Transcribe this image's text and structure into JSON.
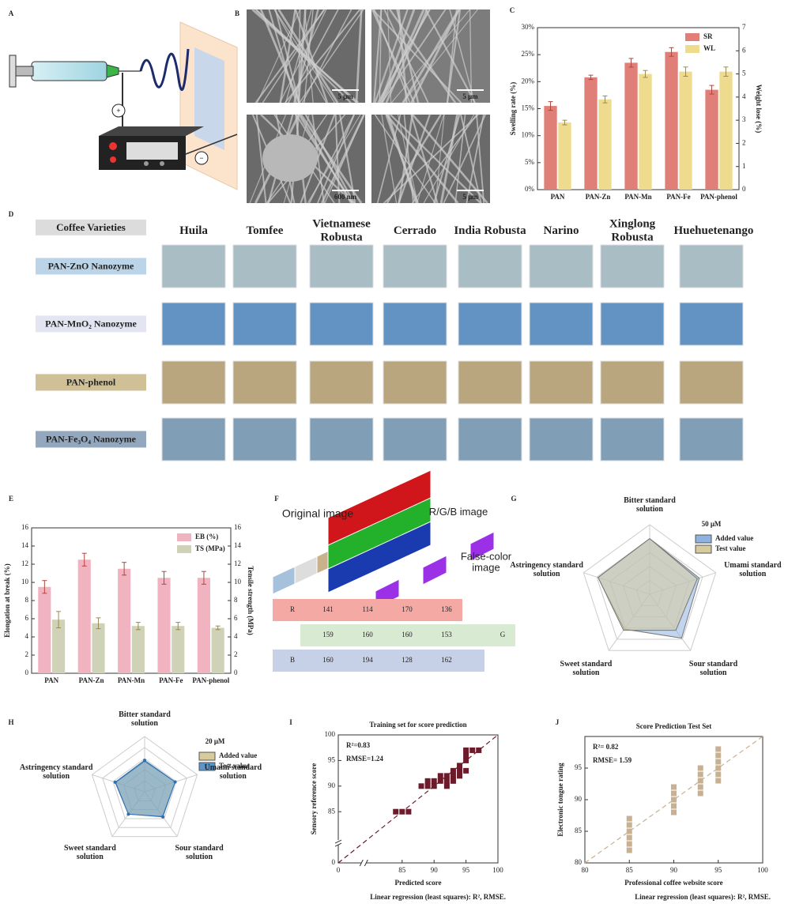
{
  "panel_labels": [
    "A",
    "B",
    "C",
    "D",
    "E",
    "F",
    "G",
    "H",
    "I",
    "J"
  ],
  "electrospinning": {
    "positive": "+",
    "negative": "−"
  },
  "sem_scale_bars": [
    "5 μm",
    "5 μm",
    "600 nm",
    "5 μm"
  ],
  "coffee_table": {
    "corner": "Coffee Varieties",
    "varieties": [
      "Huila",
      "Tomfee",
      "Vietnamese Robusta",
      "Cerrado",
      "India Robusta",
      "Narino",
      "Xinglong Robusta",
      "Huehuetenango"
    ],
    "rows": [
      {
        "label": "PAN-ZnO Nanozyme",
        "label_color": "#bcd4e8",
        "color": "#a9bdc5"
      },
      {
        "label": "PAN-MnO₂ Nanozyme",
        "label_color": "#e3e6f2",
        "color": "#6393c2"
      },
      {
        "label": "PAN-phenol",
        "label_color": "#cfc096",
        "color": "#b9a67e"
      },
      {
        "label": "PAN-Fe₃O₄ Nanozyme",
        "label_color": "#93a8bf",
        "color": "#809fb7"
      }
    ]
  },
  "rgb": {
    "original": "Original image",
    "rgb": "R/G/B image",
    "false_color": "False-color image",
    "channels": [
      {
        "name": "R",
        "values": [
          141,
          114,
          170,
          136
        ],
        "color": "#f4a9a5"
      },
      {
        "name": "G",
        "values": [
          159,
          160,
          160,
          153
        ],
        "color": "#d9ead3"
      },
      {
        "name": "B",
        "values": [
          160,
          194,
          128,
          162
        ],
        "color": "#c6d0e6"
      }
    ]
  },
  "chart_data": [
    {
      "type": "bar",
      "ylabel": "Swelling rate (%)",
      "y2label": "Weight lose (%)",
      "ylabel_color": "#e07f77",
      "y2label_color": "#e3d38a",
      "categories": [
        "PAN",
        "PAN-Zn",
        "PAN-Mn",
        "PAN-Fe",
        "PAN-phenol"
      ],
      "ylim": [
        0,
        30
      ],
      "yticks": [
        {
          "value": 0,
          "label": "0%"
        },
        {
          "value": 5,
          "label": "5%"
        },
        {
          "value": 10,
          "label": "10%"
        },
        {
          "value": 15,
          "label": "15%"
        },
        {
          "value": 20,
          "label": "20%"
        },
        {
          "value": 25,
          "label": "25%"
        },
        {
          "value": 30,
          "label": "30%"
        }
      ],
      "y2lim": [
        0,
        7
      ],
      "y2ticks": [
        0,
        1,
        2,
        3,
        4,
        5,
        6,
        7
      ],
      "legend": "upper right",
      "series": [
        {
          "name": "SR",
          "color": "#e07f77",
          "values": [
            15.5,
            20.8,
            23.5,
            25.5,
            18.5
          ],
          "errors": [
            0.8,
            0.4,
            0.8,
            0.8,
            0.8
          ]
        },
        {
          "name": "WL",
          "color": "#eedb8e",
          "axis": "y2",
          "values": [
            2.9,
            3.9,
            5.0,
            5.1,
            5.1
          ],
          "errors": [
            0.1,
            0.15,
            0.15,
            0.2,
            0.2
          ]
        }
      ]
    },
    {
      "type": "bar",
      "ylabel": "Elongation at break (%)",
      "y2label": "Tensile strength (MPa)",
      "ylabel_color": "#e0605f",
      "y2label_color": "#8aab3a",
      "categories": [
        "PAN",
        "PAN-Zn",
        "PAN-Mn",
        "PAN-Fe",
        "PAN-phenol"
      ],
      "ylim": [
        0,
        16
      ],
      "yticks": [
        0,
        2,
        4,
        6,
        8,
        10,
        12,
        14,
        16
      ],
      "y2lim": [
        0,
        16
      ],
      "y2ticks": [
        0,
        2,
        4,
        6,
        8,
        10,
        12,
        14,
        16
      ],
      "legend": "upper right",
      "series": [
        {
          "name": "EB (%)",
          "color": "#f2b3c0",
          "values": [
            9.5,
            12.5,
            11.5,
            10.5,
            10.5
          ],
          "errors": [
            0.7,
            0.7,
            0.7,
            0.7,
            0.7
          ]
        },
        {
          "name": "TS (MPa)",
          "color": "#cfd2b6",
          "axis": "y2",
          "values": [
            5.9,
            5.5,
            5.2,
            5.2,
            5.0
          ],
          "errors": [
            0.9,
            0.6,
            0.4,
            0.4,
            0.2
          ]
        }
      ]
    },
    {
      "type": "radar",
      "title": "50 μM",
      "rlim": [
        0,
        1
      ],
      "axes": [
        "Bitter standard solution",
        "Umami standard solution",
        "Sour standard solution",
        "Sweet standard solution",
        "Astringency standard solution"
      ],
      "series": [
        {
          "name": "Added value",
          "color": "#8fb3e0",
          "values": [
            0.8,
            0.75,
            0.78,
            0.62,
            0.78
          ]
        },
        {
          "name": "Test value",
          "color": "#d6cb9c",
          "values": [
            0.8,
            0.72,
            0.64,
            0.64,
            0.78
          ]
        }
      ]
    },
    {
      "type": "radar",
      "title": "20 μM",
      "rlim": [
        0,
        1
      ],
      "markers": true,
      "axes": [
        "Bitter standard solution",
        "Umami standard solution",
        "Sour standard solution",
        "Sweet standard solution",
        "Astringency standard solution"
      ],
      "series": [
        {
          "name": "Added value",
          "color": "#d6cb9c",
          "values": [
            0.55,
            0.58,
            0.55,
            0.5,
            0.55
          ]
        },
        {
          "name": "Test value",
          "color": "#5b95c9",
          "values": [
            0.57,
            0.58,
            0.56,
            0.5,
            0.56
          ]
        }
      ]
    },
    {
      "type": "scatter",
      "title": "Training set for score prediction",
      "xlabel": "Predicted score",
      "ylabel": "Sensory reference score",
      "annotations": [
        "R²=0.83",
        "RMSE=1.24"
      ],
      "footnote": "Linear regression (least squares): R², RMSE.",
      "color": "#6b1b2a",
      "diagonal": true,
      "xlim": [
        0,
        100
      ],
      "xbreak": [
        5,
        80
      ],
      "xticks": [
        0,
        85,
        90,
        95,
        100
      ],
      "ylim": [
        0,
        100
      ],
      "ybreak": [
        5,
        80
      ],
      "yticks": [
        0,
        85,
        90,
        95,
        100
      ],
      "x": [
        84,
        85,
        86,
        88,
        89,
        89,
        90,
        90,
        91,
        91,
        92,
        92,
        92,
        93,
        93,
        93,
        94,
        94,
        94,
        95,
        95,
        95,
        95,
        96,
        97
      ],
      "values": [
        85,
        85,
        85,
        90,
        90,
        91,
        90,
        91,
        91,
        92,
        90,
        91,
        92,
        91,
        92,
        93,
        92,
        93,
        94,
        93,
        95,
        96,
        97,
        97,
        97
      ]
    },
    {
      "type": "scatter",
      "title": "Score Prediction Test Set",
      "xlabel": "Professional coffee website score",
      "ylabel": "Electronic tongue rating",
      "annotations": [
        "R²= 0.82",
        "RMSE= 1.59"
      ],
      "footnote": "Linear regression (least squares): R², RMSE.",
      "color": "#c9b091",
      "diagonal": true,
      "xlim": [
        80,
        100
      ],
      "xticks": [
        80,
        85,
        90,
        95,
        100
      ],
      "ylim": [
        80,
        100
      ],
      "yticks": [
        80,
        85,
        90,
        95
      ],
      "x": [
        85,
        85,
        85,
        85,
        85,
        85,
        90,
        90,
        90,
        90,
        90,
        93,
        93,
        93,
        93,
        93,
        95,
        95,
        95,
        95,
        95,
        95
      ],
      "values": [
        82,
        83,
        84,
        85,
        86,
        87,
        88,
        89,
        90,
        91,
        92,
        91,
        92,
        93,
        94,
        95,
        93,
        94,
        95,
        96,
        97,
        98
      ]
    }
  ]
}
